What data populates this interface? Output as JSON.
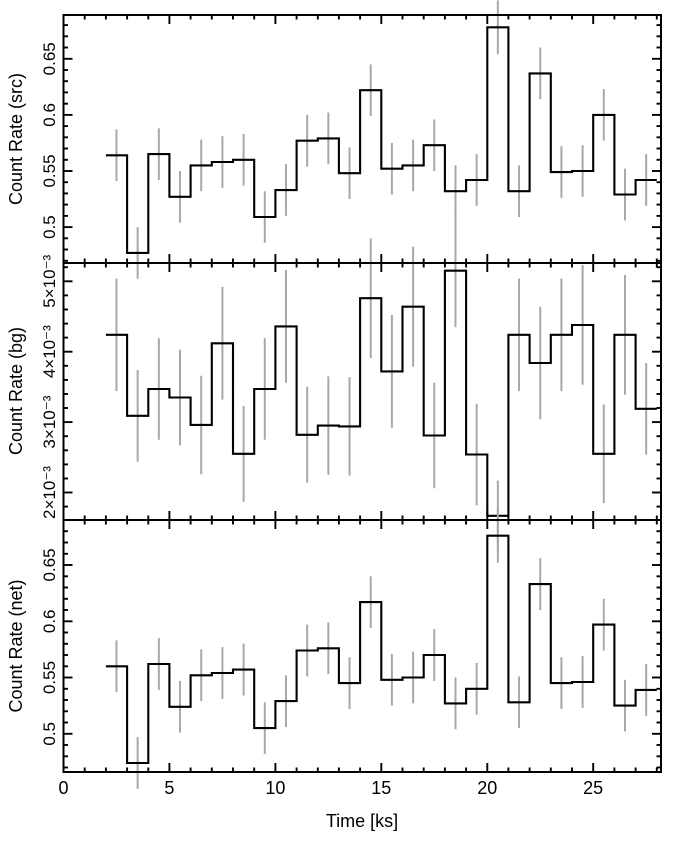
{
  "figure": {
    "background": "#ffffff",
    "colors": {
      "line": "#000000",
      "error_bar": "#a8a8a8",
      "frame": "#000000",
      "text": "#000000"
    }
  },
  "chart_data": {
    "type": "line",
    "subtype": "step-histogram-with-error-bars",
    "title": "",
    "xlabel": "Time [ks]",
    "x": {
      "label": "Time [ks]",
      "lim": [
        0,
        28.2
      ],
      "major_ticks": [
        0,
        5,
        10,
        15,
        20,
        25
      ],
      "major_tick_labels": [
        "0",
        "5",
        "10",
        "15",
        "20",
        "25"
      ],
      "minor_step": 1,
      "bin_start": 2,
      "bin_width": 1,
      "n_bins": 26
    },
    "panels": [
      {
        "name": "src",
        "ylabel": "Count Rate (src)",
        "ylim": [
          0.468,
          0.689
        ],
        "yticks": [
          0.5,
          0.55,
          0.6,
          0.65
        ],
        "ytick_labels": [
          "0.5",
          "0.55",
          "0.6",
          "0.65"
        ],
        "y_minor_step": 0.01,
        "values": [
          0.564,
          0.477,
          0.565,
          0.527,
          0.555,
          0.558,
          0.56,
          0.509,
          0.533,
          0.577,
          0.579,
          0.548,
          0.622,
          0.552,
          0.555,
          0.573,
          0.532,
          0.542,
          0.678,
          0.532,
          0.637,
          0.549,
          0.55,
          0.6,
          0.529,
          0.542
        ],
        "errors": [
          0.023,
          0.023,
          0.023,
          0.023,
          0.023,
          0.023,
          0.023,
          0.023,
          0.023,
          0.023,
          0.023,
          0.023,
          0.023,
          0.023,
          0.023,
          0.023,
          0.023,
          0.023,
          0.024,
          0.023,
          0.023,
          0.023,
          0.023,
          0.023,
          0.023,
          0.023
        ]
      },
      {
        "name": "bg",
        "ylabel": "Count Rate (bg)",
        "ylim": [
          0.00161,
          0.00526
        ],
        "yticks": [
          0.002,
          0.003,
          0.004,
          0.005
        ],
        "ytick_labels": [
          "2×10⁻³",
          "3×10⁻³",
          "4×10⁻³",
          "5×10⁻³"
        ],
        "y_minor_step": 0.0002,
        "values": [
          0.00424,
          0.00309,
          0.00347,
          0.00335,
          0.00296,
          0.00412,
          0.00255,
          0.00347,
          0.00436,
          0.00282,
          0.00295,
          0.00294,
          0.00476,
          0.00372,
          0.00464,
          0.00281,
          0.00515,
          0.00254,
          0.00167,
          0.00424,
          0.00384,
          0.00424,
          0.00438,
          0.00255,
          0.00424,
          0.00319
        ],
        "errors": [
          0.0008,
          0.00065,
          0.00072,
          0.00068,
          0.0007,
          0.0008,
          0.00068,
          0.00072,
          0.0008,
          0.00068,
          0.0007,
          0.0007,
          0.00085,
          0.0008,
          0.00085,
          0.00075,
          0.0008,
          0.00072,
          0.0005,
          0.0008,
          0.0008,
          0.0008,
          0.00085,
          0.0007,
          0.00085,
          0.00065
        ]
      },
      {
        "name": "net",
        "ylabel": "Count Rate (net)",
        "ylim": [
          0.466,
          0.69
        ],
        "yticks": [
          0.5,
          0.55,
          0.6,
          0.65
        ],
        "ytick_labels": [
          "0.5",
          "0.55",
          "0.6",
          "0.65"
        ],
        "y_minor_step": 0.01,
        "values": [
          0.56,
          0.474,
          0.562,
          0.524,
          0.552,
          0.554,
          0.557,
          0.505,
          0.529,
          0.574,
          0.576,
          0.545,
          0.617,
          0.548,
          0.55,
          0.57,
          0.527,
          0.54,
          0.676,
          0.528,
          0.633,
          0.545,
          0.546,
          0.597,
          0.525,
          0.539
        ],
        "errors": [
          0.023,
          0.023,
          0.023,
          0.023,
          0.023,
          0.023,
          0.023,
          0.023,
          0.023,
          0.023,
          0.023,
          0.023,
          0.023,
          0.023,
          0.023,
          0.023,
          0.023,
          0.023,
          0.024,
          0.023,
          0.023,
          0.023,
          0.023,
          0.023,
          0.023,
          0.023
        ]
      }
    ],
    "legend": null,
    "grid": false
  }
}
